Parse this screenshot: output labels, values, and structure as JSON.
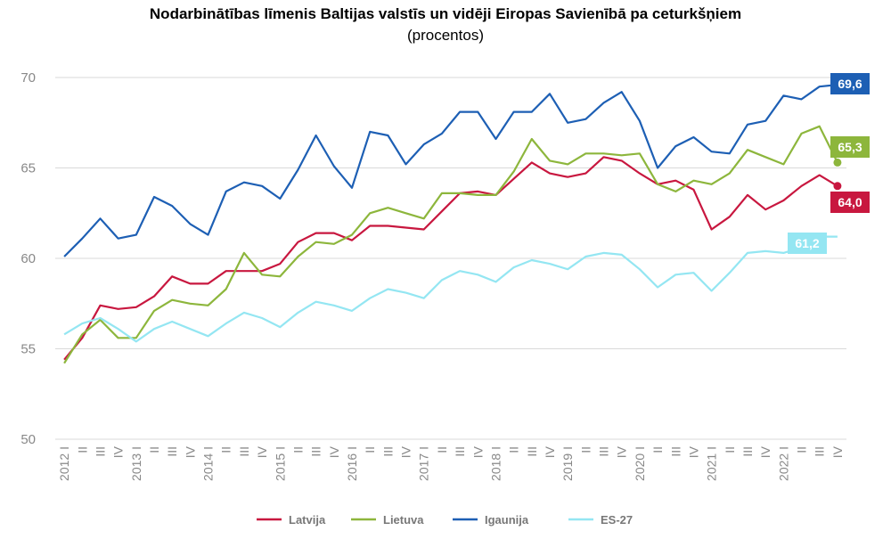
{
  "chart_data": {
    "type": "line",
    "title": "Nodarbinātības līmenis Baltijas valstīs un vidēji Eiropas Savienībā pa ceturkšņiem",
    "subtitle": "(procentos)",
    "xlabel": "",
    "ylabel": "",
    "ylim": [
      50,
      70
    ],
    "yticks": [
      "50",
      "55",
      "60",
      "65",
      "70"
    ],
    "x": [
      "2012 I",
      "II",
      "III",
      "IV",
      "2013 I",
      "II",
      "III",
      "IV",
      "2014 I",
      "II",
      "III",
      "IV",
      "2015 I",
      "II",
      "III",
      "IV",
      "2016 I",
      "II",
      "III",
      "IV",
      "2017 I",
      "II",
      "III",
      "IV",
      "2018 I",
      "II",
      "III",
      "IV",
      "2019 I",
      "II",
      "III",
      "IV",
      "2020 I",
      "II",
      "III",
      "IV",
      "2021 I",
      "II",
      "III",
      "IV",
      "2022 I",
      "II",
      "III",
      "IV"
    ],
    "legend_position": "bottom",
    "series": [
      {
        "name": "Latvija",
        "color": "#c8173f",
        "end_label": "64,0",
        "values": [
          54.4,
          55.6,
          57.4,
          57.2,
          57.3,
          57.9,
          59.0,
          58.6,
          58.6,
          59.3,
          59.3,
          59.3,
          59.7,
          60.9,
          61.4,
          61.4,
          61.0,
          61.8,
          61.8,
          61.7,
          61.6,
          62.6,
          63.6,
          63.7,
          63.5,
          64.4,
          65.3,
          64.7,
          64.5,
          64.7,
          65.6,
          65.4,
          64.7,
          64.1,
          64.3,
          63.8,
          61.6,
          62.3,
          63.5,
          62.7,
          63.2,
          64.0,
          64.6,
          64.0
        ]
      },
      {
        "name": "Lietuva",
        "color": "#8db63c",
        "end_label": "65,3",
        "values": [
          54.2,
          55.8,
          56.6,
          55.6,
          55.6,
          57.1,
          57.7,
          57.5,
          57.4,
          58.3,
          60.3,
          59.1,
          59.0,
          60.1,
          60.9,
          60.8,
          61.3,
          62.5,
          62.8,
          62.5,
          62.2,
          63.6,
          63.6,
          63.5,
          63.5,
          64.8,
          66.6,
          65.4,
          65.2,
          65.8,
          65.8,
          65.7,
          65.8,
          64.1,
          63.7,
          64.3,
          64.1,
          64.7,
          66.0,
          65.6,
          65.2,
          66.9,
          67.3,
          65.3
        ]
      },
      {
        "name": "Igaunija",
        "color": "#1d5fb4",
        "end_label": "69,6",
        "values": [
          60.1,
          61.1,
          62.2,
          61.1,
          61.3,
          63.4,
          62.9,
          61.9,
          61.3,
          63.7,
          64.2,
          64.0,
          63.3,
          64.9,
          66.8,
          65.1,
          63.9,
          67.0,
          66.8,
          65.2,
          66.3,
          66.9,
          68.1,
          68.1,
          66.6,
          68.1,
          68.1,
          69.1,
          67.5,
          67.7,
          68.6,
          69.2,
          67.6,
          65.0,
          66.2,
          66.7,
          65.9,
          65.8,
          67.4,
          67.6,
          69.0,
          68.8,
          69.5,
          69.6
        ]
      },
      {
        "name": "ES-27",
        "color": "#94e6f2",
        "end_label": "61,2",
        "values": [
          55.8,
          56.4,
          56.7,
          56.1,
          55.4,
          56.1,
          56.5,
          56.1,
          55.7,
          56.4,
          57.0,
          56.7,
          56.2,
          57.0,
          57.6,
          57.4,
          57.1,
          57.8,
          58.3,
          58.1,
          57.8,
          58.8,
          59.3,
          59.1,
          58.7,
          59.5,
          59.9,
          59.7,
          59.4,
          60.1,
          60.3,
          60.2,
          59.4,
          58.4,
          59.1,
          59.2,
          58.2,
          59.2,
          60.3,
          60.4,
          60.3,
          60.6,
          61.2,
          61.2
        ]
      }
    ]
  }
}
